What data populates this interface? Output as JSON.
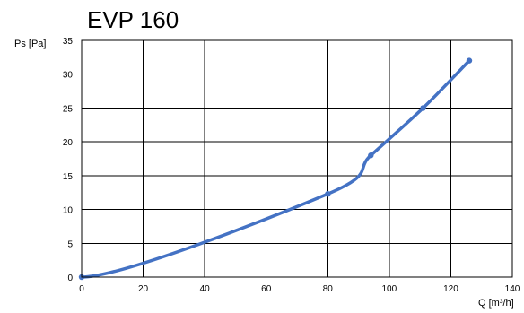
{
  "chart_data": {
    "type": "line",
    "title": "EVP 160",
    "xlabel": "Q [m³/h]",
    "ylabel": "Ps [Pa]",
    "xlim": [
      0,
      140
    ],
    "ylim": [
      0,
      35
    ],
    "x_ticks": [
      "0",
      "20",
      "40",
      "60",
      "80",
      "100",
      "120",
      "140"
    ],
    "y_ticks": [
      "0",
      "5",
      "10",
      "15",
      "20",
      "25",
      "30",
      "35"
    ],
    "grid": true,
    "legend": "none",
    "series": [
      {
        "color": "#4472c4",
        "points": [
          [
            0,
            0
          ],
          [
            80,
            12.3
          ],
          [
            94,
            18
          ],
          [
            111,
            25
          ],
          [
            126,
            32
          ]
        ]
      }
    ]
  }
}
